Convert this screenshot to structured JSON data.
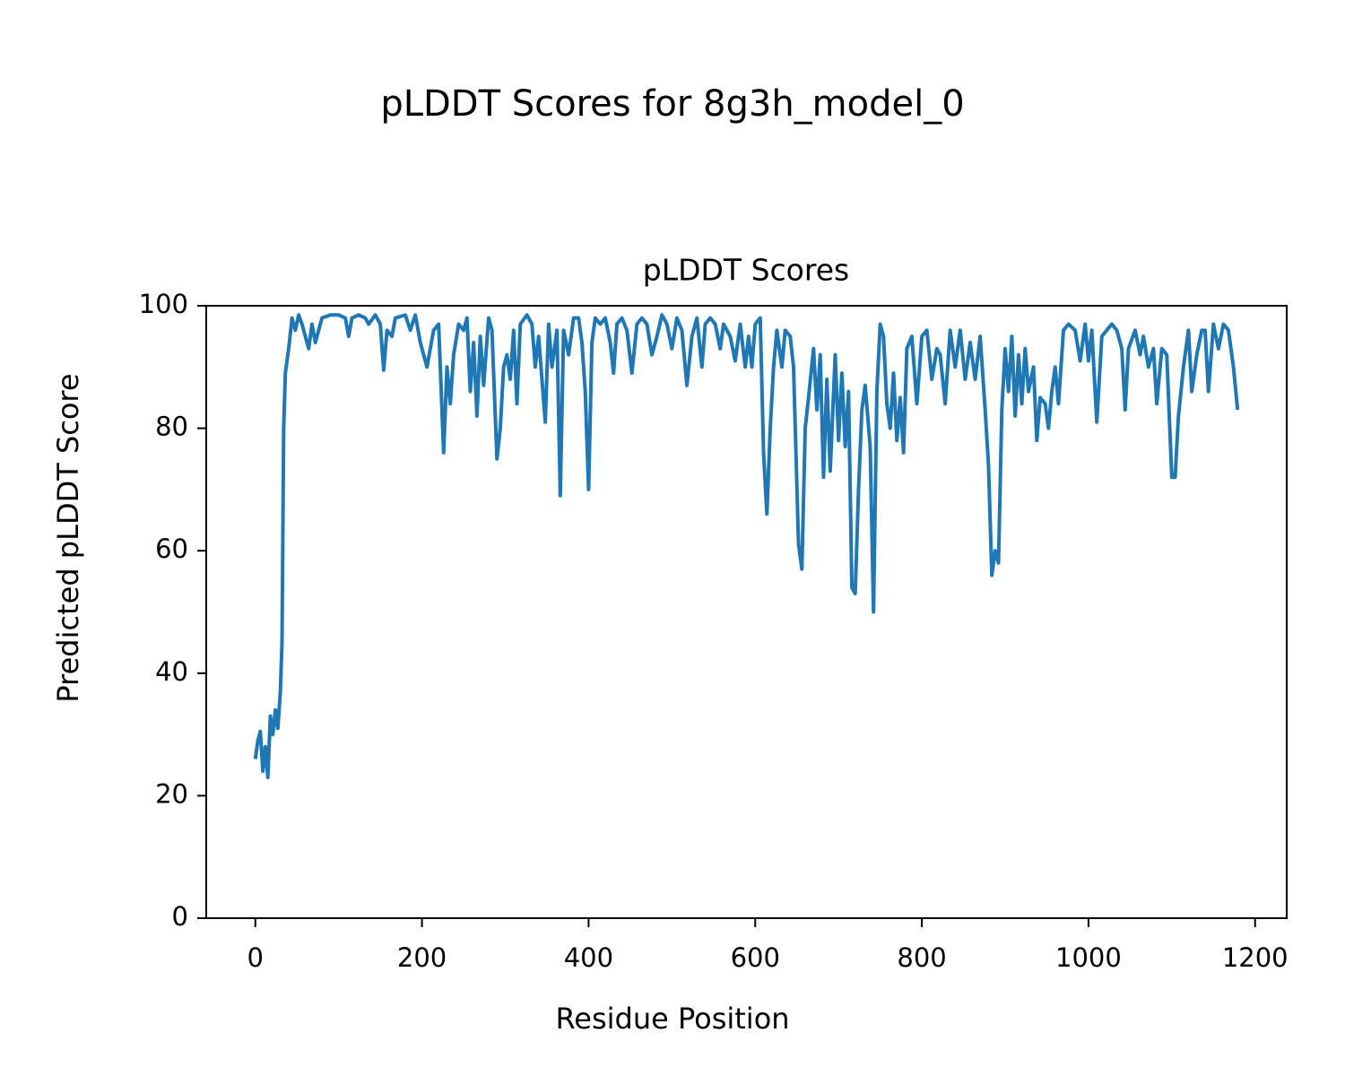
{
  "chart_data": {
    "type": "line",
    "suptitle": "pLDDT Scores for 8g3h_model_0",
    "title": "pLDDT Scores",
    "xlabel": "Residue Position",
    "ylabel": "Predicted pLDDT Score",
    "xlim": [
      -58.95,
      1237.95
    ],
    "ylim": [
      0,
      100
    ],
    "xticks": [
      0,
      200,
      400,
      600,
      800,
      1000,
      1200
    ],
    "yticks": [
      0,
      20,
      40,
      60,
      80,
      100
    ],
    "color": "#1f77b4",
    "x": [
      0,
      3,
      6,
      9,
      12,
      15,
      18,
      21,
      24,
      27,
      30,
      32,
      34,
      36,
      40,
      44,
      48,
      52,
      56,
      60,
      64,
      68,
      72,
      76,
      80,
      90,
      100,
      108,
      112,
      116,
      124,
      132,
      136,
      144,
      150,
      154,
      158,
      164,
      168,
      180,
      186,
      192,
      198,
      206,
      214,
      220,
      226,
      230,
      234,
      238,
      244,
      250,
      254,
      258,
      262,
      266,
      270,
      274,
      280,
      284,
      290,
      294,
      298,
      302,
      306,
      310,
      314,
      318,
      326,
      332,
      336,
      340,
      344,
      348,
      352,
      356,
      362,
      366,
      370,
      376,
      382,
      388,
      392,
      396,
      400,
      404,
      408,
      414,
      420,
      426,
      430,
      434,
      440,
      446,
      452,
      458,
      464,
      470,
      476,
      482,
      488,
      494,
      500,
      506,
      512,
      518,
      524,
      530,
      536,
      540,
      546,
      552,
      558,
      562,
      570,
      576,
      582,
      588,
      592,
      596,
      600,
      606,
      610,
      614,
      618,
      622,
      626,
      632,
      636,
      642,
      646,
      652,
      656,
      660,
      664,
      670,
      674,
      678,
      682,
      686,
      690,
      696,
      700,
      704,
      708,
      712,
      716,
      720,
      724,
      728,
      732,
      738,
      742,
      746,
      750,
      754,
      758,
      762,
      766,
      770,
      774,
      778,
      782,
      788,
      794,
      800,
      806,
      812,
      818,
      822,
      828,
      834,
      840,
      846,
      852,
      858,
      864,
      870,
      876,
      880,
      884,
      888,
      892,
      896,
      900,
      904,
      908,
      912,
      916,
      920,
      924,
      928,
      934,
      938,
      942,
      948,
      952,
      956,
      960,
      964,
      970,
      976,
      984,
      990,
      996,
      1000,
      1004,
      1010,
      1016,
      1022,
      1028,
      1034,
      1040,
      1044,
      1048,
      1056,
      1062,
      1066,
      1072,
      1078,
      1082,
      1088,
      1094,
      1100,
      1104,
      1108,
      1114,
      1120,
      1124,
      1130,
      1136,
      1140,
      1144,
      1150,
      1156,
      1162,
      1168,
      1174,
      1179
    ],
    "values": [
      26,
      29,
      30.5,
      24,
      28,
      23,
      33,
      30,
      34,
      31,
      37,
      45,
      80,
      89,
      93,
      98,
      96,
      98.5,
      97,
      95,
      93,
      97,
      94,
      96,
      98,
      98.5,
      98.5,
      98,
      95,
      98,
      98.5,
      98,
      97,
      98.5,
      97,
      89.5,
      96,
      95,
      98,
      98.5,
      96,
      98.5,
      94,
      90,
      96,
      97,
      76,
      90,
      84,
      92,
      97,
      96,
      98,
      86,
      94,
      82,
      95,
      87,
      98,
      96,
      75,
      80,
      90,
      92,
      88,
      96,
      84,
      97,
      98.5,
      97,
      90,
      95,
      88,
      81,
      97,
      90,
      96,
      69,
      96,
      92,
      98,
      98,
      94,
      86,
      70,
      94,
      98,
      97,
      98,
      94,
      89,
      97,
      98,
      96,
      89,
      97,
      98,
      97,
      92,
      95,
      98.5,
      97,
      93,
      98,
      96,
      87,
      95,
      98,
      90,
      97,
      98,
      97,
      93,
      97,
      95,
      91,
      97,
      90,
      95,
      90,
      97,
      98,
      76,
      66,
      80,
      90,
      96,
      90,
      96,
      95,
      90,
      61,
      57,
      80,
      85,
      93,
      83,
      92,
      72,
      88,
      73,
      92,
      78,
      89,
      77,
      86,
      54,
      53,
      70,
      83,
      87,
      77,
      50,
      86,
      97,
      95,
      84,
      80,
      89,
      78,
      85,
      76,
      93,
      95,
      84,
      95,
      96,
      88,
      93,
      92,
      84,
      96,
      90,
      96,
      88,
      94,
      88,
      95,
      83,
      74,
      56,
      60,
      58,
      83,
      93,
      86,
      95,
      82,
      92,
      84,
      93,
      86,
      90,
      78,
      85,
      84,
      80,
      86,
      90,
      84,
      96,
      97,
      96,
      91,
      97,
      91,
      96,
      81,
      95,
      96,
      97,
      96,
      93,
      83,
      93,
      96,
      92,
      95,
      90,
      93,
      84,
      93,
      92,
      72,
      72,
      82,
      90,
      96,
      86,
      92,
      96,
      96,
      86,
      97,
      93,
      97,
      96,
      90,
      83
    ]
  }
}
